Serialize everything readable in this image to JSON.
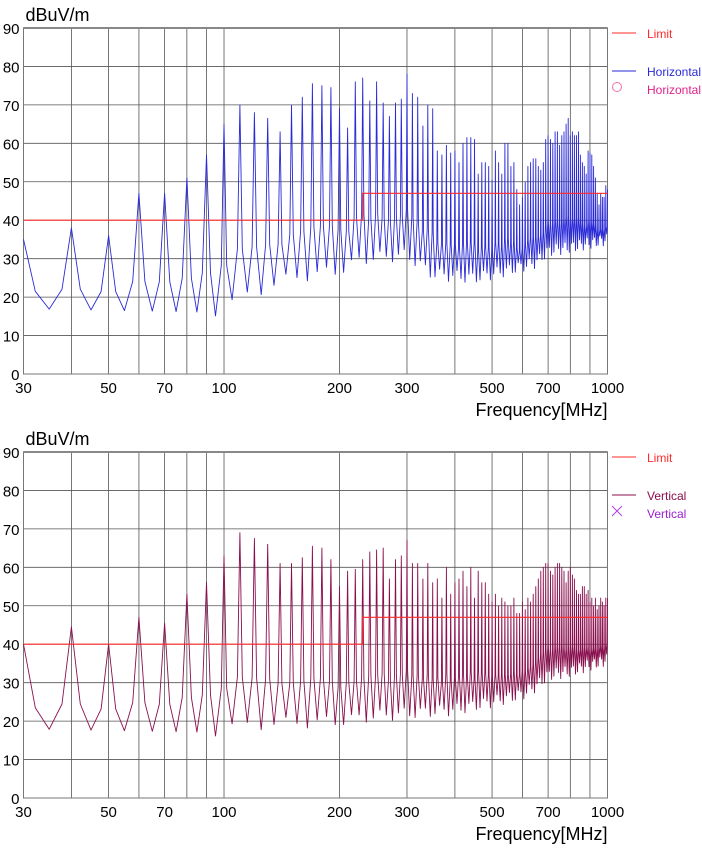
{
  "colors": {
    "limit": "#ff2a2a",
    "horizontal": "#2a2ad8",
    "horizontal_marker": "#f070b0",
    "vertical": "#8a0f4e",
    "vertical_marker": "#b040e0",
    "grid": "#555555"
  },
  "chart_data": [
    {
      "type": "line",
      "ylabel": "dBuV/m",
      "xlabel": "Frequency[MHz]",
      "xscale": "log",
      "xlim": [
        30,
        1000
      ],
      "ylim": [
        0,
        90
      ],
      "yticks": [
        0,
        10,
        20,
        30,
        40,
        50,
        60,
        70,
        80,
        90
      ],
      "xticks": [
        30,
        50,
        70,
        100,
        200,
        300,
        500,
        700,
        1000
      ],
      "grid": true,
      "legend": {
        "placement": "right",
        "entries": [
          {
            "label": "Limit",
            "kind": "line",
            "color": "#ff2a2a"
          },
          {
            "label": "Horizontal",
            "kind": "line",
            "color": "#2a2ad8"
          },
          {
            "label": "Horizontal",
            "kind": "circle-marker",
            "color": "#e0208a"
          }
        ]
      },
      "limit": [
        [
          30,
          40
        ],
        [
          230,
          40
        ],
        [
          230,
          47
        ],
        [
          1000,
          47
        ]
      ],
      "series": {
        "name": "Horizontal",
        "peak_step_mhz": 10,
        "peaks": [
          35,
          38,
          36,
          47,
          47,
          51,
          57,
          65,
          70,
          68,
          66.5,
          63,
          70,
          72,
          75.5,
          75,
          74.5,
          69,
          64,
          76,
          77,
          71,
          76,
          70.5,
          67,
          70.5,
          71.5,
          78,
          73,
          72,
          64.5,
          70,
          69,
          58,
          57,
          59.5,
          57.5,
          58,
          55,
          60,
          61.5,
          61.5,
          61,
          52,
          55,
          55,
          54,
          50.5,
          58,
          55,
          52,
          60,
          60,
          54,
          55,
          48,
          44,
          46,
          50,
          54,
          55,
          56,
          56,
          54,
          53,
          55,
          61,
          62,
          61,
          60,
          63,
          63,
          59.5,
          62,
          63,
          65,
          66.5,
          62,
          63,
          62,
          62,
          63,
          57,
          55,
          54,
          52,
          58,
          57.5,
          57,
          54,
          51,
          47,
          44,
          47,
          46,
          46,
          49,
          48
        ],
        "floor": [
          [
            30,
            17
          ],
          [
            100,
            16
          ],
          [
            110,
            20
          ],
          [
            150,
            25
          ],
          [
            200,
            27
          ],
          [
            230,
            30
          ],
          [
            300,
            31
          ],
          [
            350,
            26
          ],
          [
            450,
            25
          ],
          [
            550,
            27
          ],
          [
            650,
            29
          ],
          [
            700,
            32
          ],
          [
            800,
            33
          ],
          [
            1000,
            35
          ]
        ]
      }
    },
    {
      "type": "line",
      "ylabel": "dBuV/m",
      "xlabel": "Frequency[MHz]",
      "xscale": "log",
      "xlim": [
        30,
        1000
      ],
      "ylim": [
        0,
        90
      ],
      "yticks": [
        0,
        10,
        20,
        30,
        40,
        50,
        60,
        70,
        80,
        90
      ],
      "xticks": [
        30,
        50,
        70,
        100,
        200,
        300,
        500,
        700,
        1000
      ],
      "grid": true,
      "legend": {
        "placement": "right",
        "entries": [
          {
            "label": "Limit",
            "kind": "line",
            "color": "#ff2a2a"
          },
          {
            "label": "Vertical",
            "kind": "line",
            "color": "#8a0f4e"
          },
          {
            "label": "Vertical",
            "kind": "x-marker",
            "color": "#9a20d0"
          }
        ]
      },
      "limit": [
        [
          30,
          40
        ],
        [
          230,
          40
        ],
        [
          230,
          47
        ],
        [
          1000,
          47
        ]
      ],
      "series": {
        "name": "Vertical",
        "peak_step_mhz": 10,
        "peaks": [
          40,
          44.5,
          40,
          47,
          45.5,
          53,
          56,
          63,
          69,
          67.5,
          66,
          61,
          61,
          62.5,
          65.5,
          65,
          62,
          55,
          59,
          59.5,
          62,
          64,
          64.5,
          65,
          57,
          62,
          63,
          67,
          61,
          61,
          57,
          61,
          56,
          57,
          52,
          60,
          53,
          56,
          57,
          59,
          55,
          60,
          52,
          59,
          56,
          56,
          53,
          51,
          53,
          50,
          52,
          51,
          50,
          50,
          52,
          48,
          48,
          51,
          49,
          52,
          51,
          53,
          55,
          57,
          59,
          60,
          61,
          61,
          59,
          58,
          60,
          61,
          61,
          60,
          59,
          56,
          59,
          60,
          58,
          57,
          54,
          53,
          53,
          55,
          55,
          53,
          54,
          51,
          52,
          50,
          52,
          49,
          50,
          52,
          51,
          50,
          52,
          52
        ],
        "floor": [
          [
            30,
            18
          ],
          [
            100,
            17
          ],
          [
            110,
            19
          ],
          [
            200,
            20
          ],
          [
            230,
            21
          ],
          [
            300,
            22
          ],
          [
            400,
            23
          ],
          [
            500,
            25
          ],
          [
            600,
            27
          ],
          [
            650,
            29
          ],
          [
            700,
            32
          ],
          [
            800,
            33
          ],
          [
            1000,
            36
          ]
        ]
      }
    }
  ]
}
